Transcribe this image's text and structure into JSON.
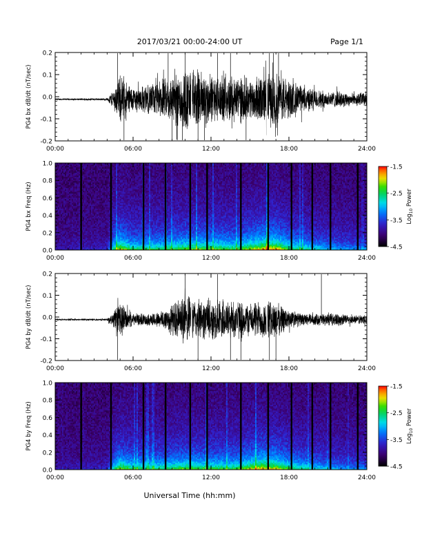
{
  "header": {
    "title": "2017/03/21  00:00-24:00 UT",
    "page": "Page 1/1"
  },
  "footer": {
    "xlabel": "Universal Time (hh:mm)"
  },
  "chart_data": [
    {
      "type": "line",
      "ylabel": "PG4 bx dB/dt (nT/sec)",
      "ylim": [
        -0.2,
        0.2
      ],
      "yticks": [
        "-0.2",
        "-0.1",
        "0.0",
        "0.1",
        "0.2"
      ],
      "xlim": [
        0,
        24
      ],
      "xticks": [
        "00:00",
        "06:00",
        "12:00",
        "18:00",
        "24:00"
      ],
      "envelope_hours": [
        0,
        4,
        4.5,
        5,
        5.5,
        6,
        7,
        8,
        9,
        10,
        11,
        12,
        13,
        14,
        15,
        16,
        17,
        18,
        19,
        20,
        21,
        22,
        23,
        24
      ],
      "envelope_amplitude": [
        0.004,
        0.005,
        0.05,
        0.12,
        0.09,
        0.06,
        0.07,
        0.09,
        0.12,
        0.16,
        0.15,
        0.12,
        0.11,
        0.12,
        0.1,
        0.12,
        0.14,
        0.1,
        0.07,
        0.05,
        0.04,
        0.04,
        0.03,
        0.04
      ],
      "spike_hours": [
        4.8,
        5.3,
        8.7,
        9.0,
        9.4,
        9.8,
        10.0,
        10.5,
        11.0,
        11.5,
        12.5,
        13.5,
        14.7,
        16.5,
        16.8,
        17.2
      ],
      "gap_hours": [
        10.5,
        16.3
      ]
    },
    {
      "type": "heatmap",
      "ylabel": "PG4 bx Freq (Hz)",
      "ylim": [
        0,
        1.0
      ],
      "yticks": [
        "0.0",
        "0.2",
        "0.4",
        "0.6",
        "0.8",
        "1.0"
      ],
      "xlim": [
        0,
        24
      ],
      "xticks": [
        "00:00",
        "06:00",
        "12:00",
        "18:00",
        "24:00"
      ],
      "colorbar": {
        "label": "Log10 Power",
        "label_main": "Log",
        "label_sub": "10",
        "label_rest": " Power",
        "range": [
          -4.5,
          -1.5
        ],
        "ticks": [
          "-1.5",
          "-2.5",
          "-3.5",
          "-4.5"
        ]
      },
      "activity_hours": [
        0,
        4,
        4.5,
        5,
        6,
        8,
        10,
        12,
        14,
        16,
        17,
        18,
        20,
        22,
        24
      ],
      "activity_level": [
        0.1,
        0.15,
        0.55,
        0.75,
        0.55,
        0.55,
        0.65,
        0.65,
        0.6,
        0.8,
        0.8,
        0.6,
        0.45,
        0.35,
        0.3
      ],
      "dark_line_hours": [
        2.0,
        4.3,
        6.8,
        8.5,
        10.4,
        11.7,
        14.3,
        16.4,
        18.2,
        19.8,
        21.2,
        23.3
      ]
    },
    {
      "type": "line",
      "ylabel": "PG4 by dB/dt (nT/sec)",
      "ylim": [
        -0.2,
        0.2
      ],
      "yticks": [
        "-0.2",
        "-0.1",
        "0.0",
        "0.1",
        "0.2"
      ],
      "xlim": [
        0,
        24
      ],
      "xticks": [
        "00:00",
        "06:00",
        "12:00",
        "18:00",
        "24:00"
      ],
      "envelope_hours": [
        0,
        4,
        4.5,
        5,
        5.5,
        6,
        7,
        8,
        9,
        10,
        11,
        12,
        13,
        14,
        15,
        16,
        17,
        18,
        19,
        20,
        21,
        22,
        23,
        24
      ],
      "envelope_amplitude": [
        0.004,
        0.005,
        0.04,
        0.1,
        0.05,
        0.03,
        0.03,
        0.04,
        0.08,
        0.12,
        0.1,
        0.1,
        0.1,
        0.1,
        0.08,
        0.1,
        0.09,
        0.05,
        0.03,
        0.03,
        0.03,
        0.03,
        0.02,
        0.03
      ],
      "spike_hours": [
        4.8,
        10.0,
        10.5,
        11.0,
        12.5,
        13.5,
        14.3,
        16.5,
        17.0,
        20.5
      ],
      "gap_hours": [
        10.5,
        16.3
      ]
    },
    {
      "type": "heatmap",
      "ylabel": "PG4 by Freq (Hz)",
      "ylim": [
        0,
        1.0
      ],
      "yticks": [
        "0.0",
        "0.2",
        "0.4",
        "0.6",
        "0.8",
        "1.0"
      ],
      "xlim": [
        0,
        24
      ],
      "xticks": [
        "00:00",
        "06:00",
        "12:00",
        "18:00",
        "24:00"
      ],
      "colorbar": {
        "label": "Log10 Power",
        "label_main": "Log",
        "label_sub": "10",
        "label_rest": " Power",
        "range": [
          -4.5,
          -1.5
        ],
        "ticks": [
          "-1.5",
          "-2.5",
          "-3.5",
          "-4.5"
        ]
      },
      "activity_hours": [
        0,
        4,
        4.5,
        5,
        6,
        8,
        10,
        12,
        14,
        16,
        17,
        18,
        20,
        22,
        24
      ],
      "activity_level": [
        0.1,
        0.15,
        0.5,
        0.7,
        0.55,
        0.55,
        0.65,
        0.6,
        0.6,
        0.8,
        0.75,
        0.6,
        0.45,
        0.35,
        0.3
      ],
      "dark_line_hours": [
        2.0,
        4.3,
        6.8,
        8.5,
        10.4,
        11.7,
        14.3,
        16.4,
        18.2,
        19.8,
        21.2,
        23.3
      ]
    }
  ]
}
